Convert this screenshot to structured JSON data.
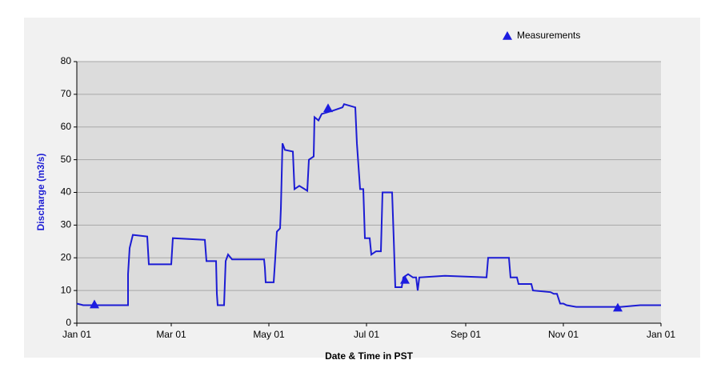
{
  "chart_data": {
    "type": "line",
    "y_label": "Discharge (m3/s)",
    "x_label": "Date & Time in PST",
    "xlim": [
      0,
      365
    ],
    "xticks": [
      {
        "value": 0,
        "label": "Jan 01"
      },
      {
        "value": 59,
        "label": "Mar 01"
      },
      {
        "value": 120,
        "label": "May 01"
      },
      {
        "value": 181,
        "label": "Jul 01"
      },
      {
        "value": 243,
        "label": "Sep 01"
      },
      {
        "value": 304,
        "label": "Nov 01"
      },
      {
        "value": 365,
        "label": "Jan 01"
      }
    ],
    "ylim": [
      0,
      80
    ],
    "yticks": [
      0,
      10,
      20,
      30,
      40,
      50,
      60,
      70,
      80
    ],
    "grid": true,
    "legend": "top-right",
    "series": [
      {
        "mode": "lines",
        "color": "#1c1cd4",
        "x": [
          0,
          4,
          32,
          32,
          33,
          35,
          44,
          45,
          59,
          60,
          80,
          81,
          87,
          87.5,
          88,
          92,
          93,
          94.5,
          97,
          117,
          117.5,
          118,
          123,
          124,
          125,
          127,
          127.5,
          128.5,
          130,
          135,
          136,
          139,
          144,
          145,
          148,
          148.5,
          151,
          153,
          160,
          166,
          167,
          174,
          175,
          177,
          179,
          180,
          183,
          184,
          187,
          190,
          191,
          197,
          198,
          199,
          203,
          204,
          207,
          210,
          212,
          213,
          214,
          230,
          256,
          257,
          270,
          271,
          275,
          276,
          284,
          285,
          296,
          298,
          300,
          302,
          304,
          306,
          312,
          340,
          352,
          365
        ],
        "values": [
          6,
          5.5,
          5.5,
          15,
          23,
          27,
          26.5,
          18,
          18,
          26,
          25.5,
          19,
          19,
          9,
          5.5,
          5.5,
          19,
          21,
          19.5,
          19.5,
          17,
          12.5,
          12.5,
          20,
          28,
          29,
          35,
          55,
          53,
          52.5,
          41,
          42,
          40.5,
          50,
          51,
          63,
          62,
          64,
          65,
          66,
          67,
          66,
          55,
          41,
          41,
          26,
          26,
          21,
          22,
          22,
          40,
          40,
          26,
          11,
          11,
          14,
          15,
          14,
          14,
          10,
          14,
          14.5,
          14,
          20,
          20,
          14,
          14,
          12,
          12,
          10,
          9.5,
          9,
          9,
          6,
          6,
          5.5,
          5,
          5,
          5.5,
          5.5
        ]
      },
      {
        "mode": "markers",
        "name": "Measurements",
        "color": "#1c1ce0",
        "x": [
          11,
          157,
          205,
          338
        ],
        "values": [
          5.5,
          65.5,
          13,
          4.5
        ]
      }
    ]
  }
}
